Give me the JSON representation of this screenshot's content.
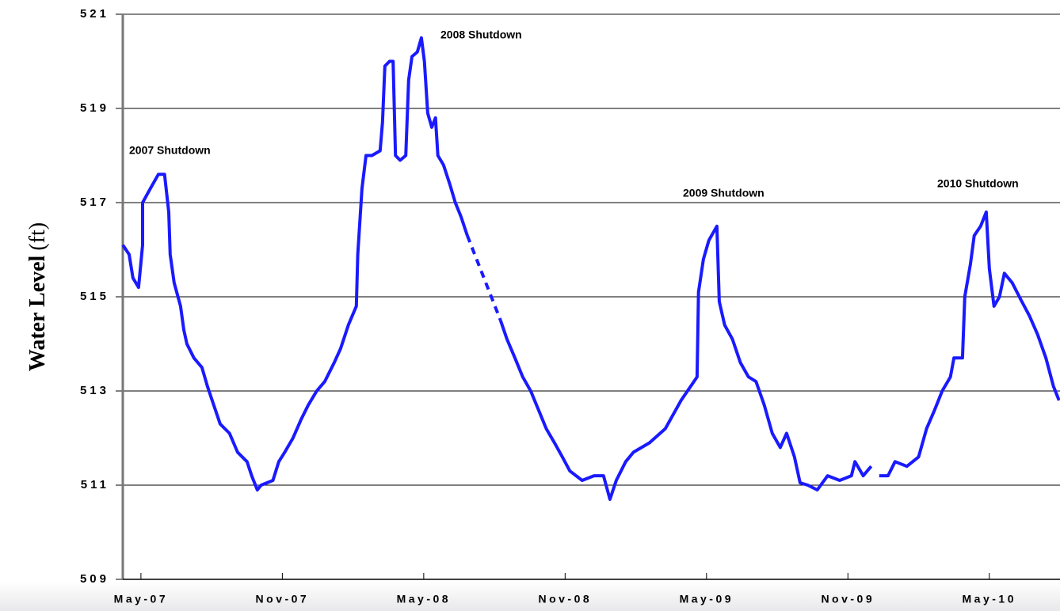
{
  "chart_data": {
    "type": "line",
    "y_label": "Water Level",
    "y_label_unit": "(ft)",
    "ylim": [
      509,
      521
    ],
    "yticks": [
      509,
      511,
      513,
      515,
      517,
      519,
      521
    ],
    "xlim": [
      -0.77,
      39
    ],
    "xticks": [
      {
        "value": 0,
        "label": "May-07"
      },
      {
        "value": 6,
        "label": "Nov-07"
      },
      {
        "value": 12,
        "label": "May-08"
      },
      {
        "value": 18,
        "label": "Nov-08"
      },
      {
        "value": 24,
        "label": "May-09"
      },
      {
        "value": 30,
        "label": "Nov-09"
      },
      {
        "value": 36,
        "label": "May-10"
      }
    ],
    "grid": true,
    "annotations": [
      "2007 Shutdown",
      "2008 Shutdown",
      "2009 Shutdown",
      "2010 Shutdown"
    ],
    "series": [
      {
        "color": "#1a1aff",
        "style": "solid",
        "x": [
          -0.77,
          -0.5,
          -0.34,
          -0.1,
          0.07,
          0.07,
          0.4,
          0.74,
          1.0,
          1.18,
          1.24,
          1.41,
          1.68,
          1.82,
          1.95,
          2.25,
          2.59,
          2.82,
          3.09,
          3.36,
          3.76,
          4.1,
          4.5,
          4.7,
          4.94,
          5.1,
          5.6,
          5.85,
          6.1,
          6.45,
          6.8,
          7.1,
          7.46,
          7.8,
          8.2,
          8.47,
          8.8,
          9.14,
          9.2,
          9.38,
          9.55,
          9.8,
          10.15,
          10.25,
          10.35,
          10.55,
          10.7,
          10.8,
          11.0,
          11.24,
          11.36,
          11.5,
          11.73,
          11.9,
          12.03,
          12.17,
          12.34,
          12.5,
          12.6,
          12.84,
          13.1,
          13.34,
          13.58,
          13.85
        ],
        "values": [
          516.1,
          515.9,
          515.4,
          515.2,
          516.1,
          517.0,
          517.3,
          517.6,
          517.6,
          516.8,
          515.9,
          515.3,
          514.8,
          514.3,
          514.0,
          513.7,
          513.5,
          513.1,
          512.7,
          512.3,
          512.1,
          511.7,
          511.5,
          511.2,
          510.9,
          511.0,
          511.1,
          511.5,
          511.7,
          512.0,
          512.4,
          512.7,
          513.0,
          513.2,
          513.6,
          513.9,
          514.4,
          514.8,
          515.9,
          517.3,
          518.0,
          518.0,
          518.1,
          518.7,
          519.9,
          520.0,
          520.0,
          518.0,
          517.9,
          518.0,
          519.6,
          520.1,
          520.2,
          520.5,
          520.0,
          518.9,
          518.6,
          518.8,
          518.0,
          517.8,
          517.4,
          517.0,
          516.7,
          516.3
        ]
      },
      {
        "color": "#1a1aff",
        "style": "dashed",
        "x": [
          13.85,
          15.26
        ],
        "values": [
          516.3,
          514.5
        ]
      },
      {
        "color": "#1a1aff",
        "style": "solid",
        "x": [
          15.26,
          15.53,
          15.87,
          16.2,
          16.54,
          16.87,
          17.2,
          17.55,
          17.88,
          18.2,
          18.72,
          19.23,
          19.63,
          19.9,
          20.17,
          20.57,
          20.9,
          21.58,
          22.25,
          22.92,
          23.33,
          23.6,
          23.66,
          23.87,
          24.1,
          24.44,
          24.54,
          24.77,
          25.1,
          25.44,
          25.78,
          26.1,
          26.45,
          26.79,
          27.13,
          27.4,
          27.73,
          27.97,
          28.3,
          28.7,
          29.14,
          29.65,
          30.15,
          30.3,
          30.65,
          30.99
        ],
        "values": [
          514.5,
          514.1,
          513.7,
          513.3,
          513.0,
          512.6,
          512.2,
          511.9,
          511.6,
          511.3,
          511.1,
          511.2,
          511.2,
          510.7,
          511.1,
          511.5,
          511.7,
          511.9,
          512.2,
          512.8,
          513.1,
          513.3,
          515.1,
          515.8,
          516.2,
          516.5,
          514.9,
          514.4,
          514.1,
          513.6,
          513.3,
          513.2,
          512.7,
          512.1,
          511.8,
          512.1,
          511.6,
          511.05,
          511.0,
          510.9,
          511.2,
          511.1,
          511.2,
          511.5,
          511.2,
          511.4
        ]
      },
      {
        "color": "#1a1aff",
        "style": "solid",
        "x": [
          31.33,
          31.7,
          32.0,
          32.5,
          33.0,
          33.34,
          33.68,
          34.0,
          34.35,
          34.5,
          34.86,
          34.96,
          35.2,
          35.36,
          35.63,
          35.87,
          36.0,
          36.2,
          36.43,
          36.64,
          36.97,
          37.38,
          37.7,
          38.05,
          38.4,
          38.72,
          38.96
        ],
        "values": [
          511.2,
          511.2,
          511.5,
          511.4,
          511.6,
          512.2,
          512.6,
          513.0,
          513.3,
          513.7,
          513.7,
          515.0,
          515.7,
          516.3,
          516.5,
          516.8,
          515.6,
          514.8,
          515.0,
          515.5,
          515.3,
          514.9,
          514.6,
          514.2,
          513.7,
          513.1,
          512.8
        ]
      }
    ]
  }
}
